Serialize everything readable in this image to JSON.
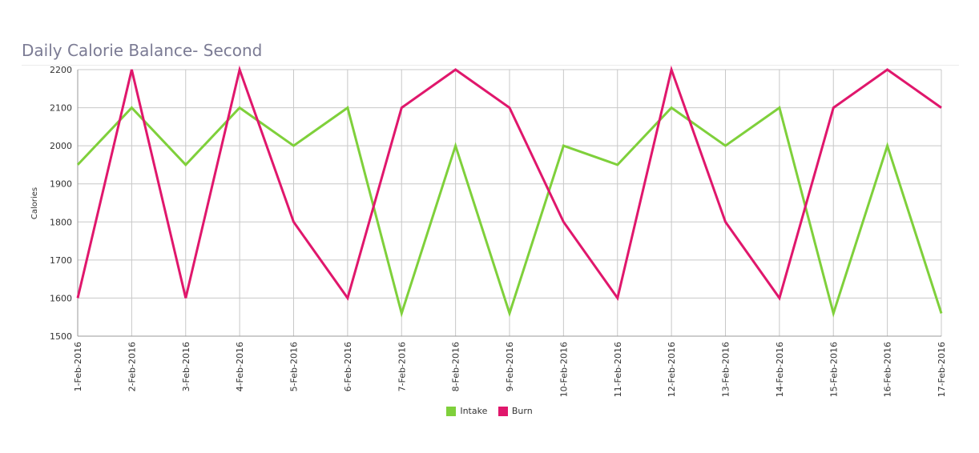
{
  "chart_data": {
    "type": "line",
    "title": "Daily Calorie Balance- Second",
    "xlabel": "",
    "ylabel": "Calories",
    "categories": [
      "1-Feb-2016",
      "2-Feb-2016",
      "3-Feb-2016",
      "4-Feb-2016",
      "5-Feb-2016",
      "6-Feb-2016",
      "7-Feb-2016",
      "8-Feb-2016",
      "9-Feb-2016",
      "10-Feb-2016",
      "11-Feb-2016",
      "12-Feb-2016",
      "13-Feb-2016",
      "14-Feb-2016",
      "15-Feb-2016",
      "16-Feb-2016",
      "17-Feb-2016"
    ],
    "ylim": [
      1500,
      2200
    ],
    "yticks": [
      1500,
      1600,
      1700,
      1800,
      1900,
      2000,
      2100,
      2200
    ],
    "grid": true,
    "legend_position": "bottom-center",
    "series": [
      {
        "name": "Intake",
        "color": "#7fd03b",
        "values": [
          1950,
          2100,
          1950,
          2100,
          2000,
          2100,
          1560,
          2000,
          1560,
          2000,
          1950,
          2100,
          2000,
          2100,
          1560,
          2000,
          1560
        ]
      },
      {
        "name": "Burn",
        "color": "#e0176c",
        "values": [
          1600,
          2200,
          1600,
          2200,
          1800,
          1600,
          2100,
          2200,
          2100,
          1800,
          1600,
          2200,
          1800,
          1600,
          2100,
          2200,
          2100
        ]
      }
    ]
  }
}
